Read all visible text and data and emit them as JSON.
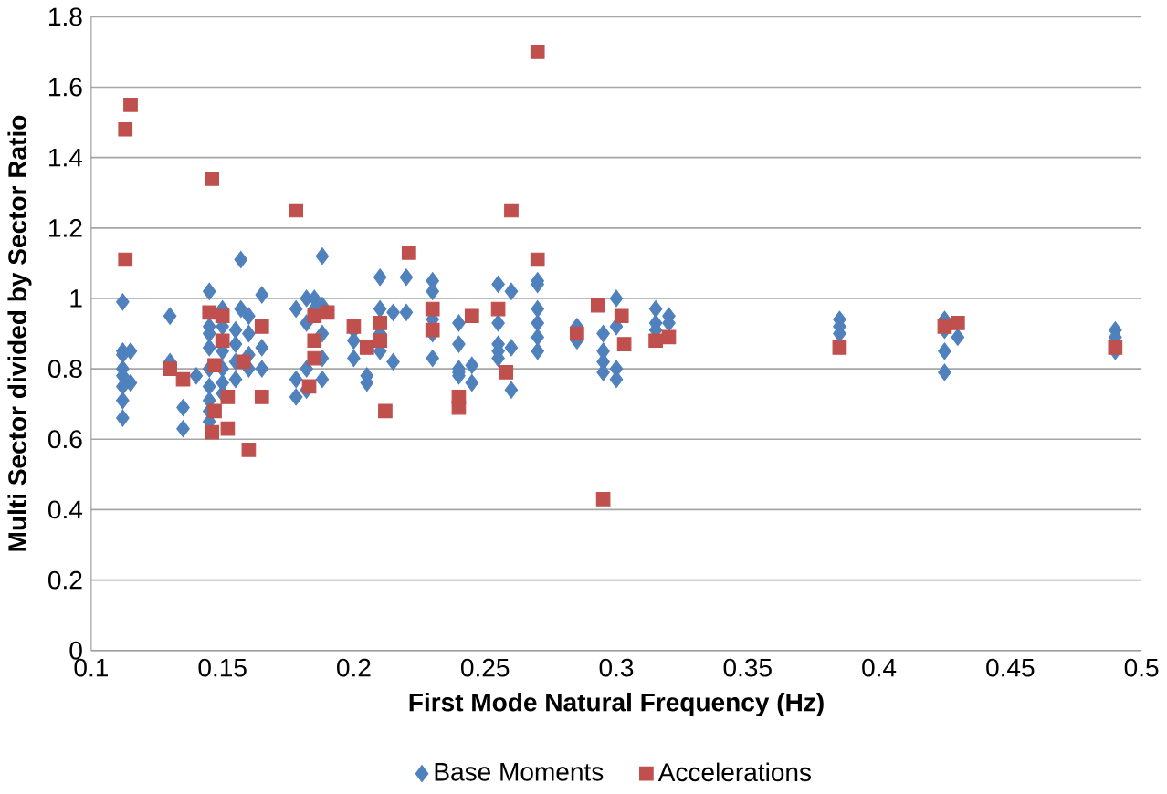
{
  "chart_data": {
    "type": "scatter",
    "xlabel": "First Mode Natural Frequency (Hz)",
    "ylabel": "Multi Sector divided by Sector Ratio",
    "xlim": [
      0.1,
      0.5
    ],
    "xticks": [
      0.1,
      0.15,
      0.2,
      0.25,
      0.3,
      0.35,
      0.4,
      0.45,
      0.5
    ],
    "ylim": [
      0,
      1.8
    ],
    "yticks": [
      0,
      0.2,
      0.4,
      0.6,
      0.8,
      1,
      1.2,
      1.4,
      1.6,
      1.8
    ],
    "grid": "y",
    "legend": "bottom",
    "series": [
      {
        "name": "Base Moments",
        "color": "#4f81bd",
        "marker": "diamond",
        "x": [
          0.112,
          0.112,
          0.112,
          0.112,
          0.112,
          0.112,
          0.112,
          0.112,
          0.115,
          0.115,
          0.13,
          0.13,
          0.135,
          0.135,
          0.14,
          0.145,
          0.145,
          0.145,
          0.145,
          0.145,
          0.145,
          0.145,
          0.145,
          0.145,
          0.15,
          0.15,
          0.15,
          0.15,
          0.15,
          0.15,
          0.155,
          0.155,
          0.155,
          0.155,
          0.157,
          0.157,
          0.16,
          0.16,
          0.16,
          0.16,
          0.165,
          0.165,
          0.165,
          0.178,
          0.178,
          0.178,
          0.182,
          0.182,
          0.182,
          0.182,
          0.185,
          0.185,
          0.188,
          0.188,
          0.188,
          0.188,
          0.188,
          0.2,
          0.2,
          0.2,
          0.205,
          0.205,
          0.21,
          0.21,
          0.21,
          0.21,
          0.215,
          0.215,
          0.22,
          0.22,
          0.23,
          0.23,
          0.23,
          0.23,
          0.23,
          0.24,
          0.24,
          0.24,
          0.24,
          0.24,
          0.245,
          0.245,
          0.255,
          0.255,
          0.255,
          0.255,
          0.255,
          0.26,
          0.26,
          0.26,
          0.27,
          0.27,
          0.27,
          0.27,
          0.27,
          0.27,
          0.285,
          0.285,
          0.295,
          0.295,
          0.295,
          0.295,
          0.3,
          0.3,
          0.3,
          0.3,
          0.315,
          0.315,
          0.315,
          0.32,
          0.32,
          0.385,
          0.385,
          0.385,
          0.425,
          0.425,
          0.425,
          0.425,
          0.43,
          0.49,
          0.49,
          0.49
        ],
        "values": [
          0.99,
          0.85,
          0.84,
          0.8,
          0.78,
          0.75,
          0.71,
          0.66,
          0.85,
          0.76,
          0.95,
          0.82,
          0.69,
          0.63,
          0.78,
          1.02,
          0.92,
          0.9,
          0.86,
          0.8,
          0.75,
          0.71,
          0.68,
          0.65,
          0.97,
          0.92,
          0.85,
          0.8,
          0.76,
          0.73,
          0.91,
          0.87,
          0.82,
          0.77,
          1.11,
          0.97,
          0.95,
          0.9,
          0.84,
          0.8,
          1.01,
          0.86,
          0.8,
          0.97,
          0.77,
          0.72,
          1.0,
          0.93,
          0.8,
          0.74,
          1.0,
          0.97,
          1.12,
          0.98,
          0.9,
          0.83,
          0.77,
          0.91,
          0.88,
          0.83,
          0.78,
          0.76,
          1.06,
          0.97,
          0.9,
          0.85,
          0.96,
          0.82,
          1.06,
          0.96,
          1.05,
          1.02,
          0.94,
          0.9,
          0.83,
          0.93,
          0.87,
          0.8,
          0.79,
          0.78,
          0.81,
          0.76,
          1.04,
          0.93,
          0.87,
          0.85,
          0.83,
          1.02,
          0.86,
          0.74,
          1.05,
          1.04,
          0.97,
          0.93,
          0.89,
          0.85,
          0.92,
          0.88,
          0.9,
          0.85,
          0.82,
          0.79,
          1.0,
          0.92,
          0.8,
          0.77,
          0.97,
          0.93,
          0.91,
          0.95,
          0.93,
          0.94,
          0.92,
          0.9,
          0.94,
          0.91,
          0.85,
          0.79,
          0.89,
          0.91,
          0.89,
          0.85
        ]
      },
      {
        "name": "Accelerations",
        "color": "#c0504d",
        "marker": "square",
        "x": [
          0.113,
          0.115,
          0.113,
          0.146,
          0.178,
          0.221,
          0.26,
          0.27,
          0.27,
          0.295,
          0.145,
          0.15,
          0.15,
          0.147,
          0.152,
          0.147,
          0.146,
          0.152,
          0.16,
          0.158,
          0.165,
          0.165,
          0.13,
          0.135,
          0.185,
          0.185,
          0.185,
          0.183,
          0.19,
          0.2,
          0.21,
          0.21,
          0.212,
          0.205,
          0.23,
          0.23,
          0.24,
          0.24,
          0.245,
          0.255,
          0.258,
          0.285,
          0.293,
          0.302,
          0.303,
          0.315,
          0.32,
          0.385,
          0.425,
          0.43,
          0.49
        ],
        "values": [
          1.48,
          1.55,
          1.11,
          1.34,
          1.25,
          1.13,
          1.25,
          1.7,
          1.11,
          0.43,
          0.96,
          0.95,
          0.88,
          0.81,
          0.72,
          0.68,
          0.62,
          0.63,
          0.57,
          0.82,
          0.92,
          0.72,
          0.8,
          0.77,
          0.95,
          0.88,
          0.83,
          0.75,
          0.96,
          0.92,
          0.93,
          0.88,
          0.68,
          0.86,
          0.97,
          0.91,
          0.72,
          0.69,
          0.95,
          0.97,
          0.79,
          0.9,
          0.98,
          0.95,
          0.87,
          0.88,
          0.89,
          0.86,
          0.92,
          0.93,
          0.86
        ]
      }
    ]
  }
}
